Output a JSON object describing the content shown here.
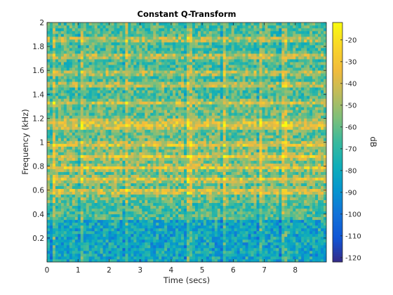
{
  "chart_data": {
    "type": "heatmap",
    "title": "Constant Q-Transform",
    "xlabel": "Time (secs)",
    "ylabel": "Frequency (kHz)",
    "xlim": [
      0,
      9
    ],
    "ylim": [
      0,
      2
    ],
    "xticks": [
      "0",
      "1",
      "2",
      "3",
      "4",
      "5",
      "6",
      "7",
      "8"
    ],
    "yticks": [
      "0.2",
      "0.4",
      "0.6",
      "0.8",
      "1",
      "1.2",
      "1.4",
      "1.6",
      "1.8",
      "2"
    ],
    "colorbar": {
      "label": "dB",
      "range": [
        -122,
        -12
      ],
      "ticks": [
        "-20",
        "-30",
        "-40",
        "-50",
        "-60",
        "-70",
        "-80",
        "-90",
        "-100",
        "-110",
        "-120"
      ],
      "colormap": "parula"
    },
    "grid": false,
    "harmonic_bands_khz": [
      0.59,
      0.69,
      0.79,
      0.88,
      0.98,
      1.13,
      1.17,
      1.33,
      1.48,
      1.58,
      1.72,
      1.86
    ],
    "onset_times_s": [
      0.2,
      1.1,
      2.55,
      4.55,
      5.7,
      6.85,
      7.6
    ]
  }
}
